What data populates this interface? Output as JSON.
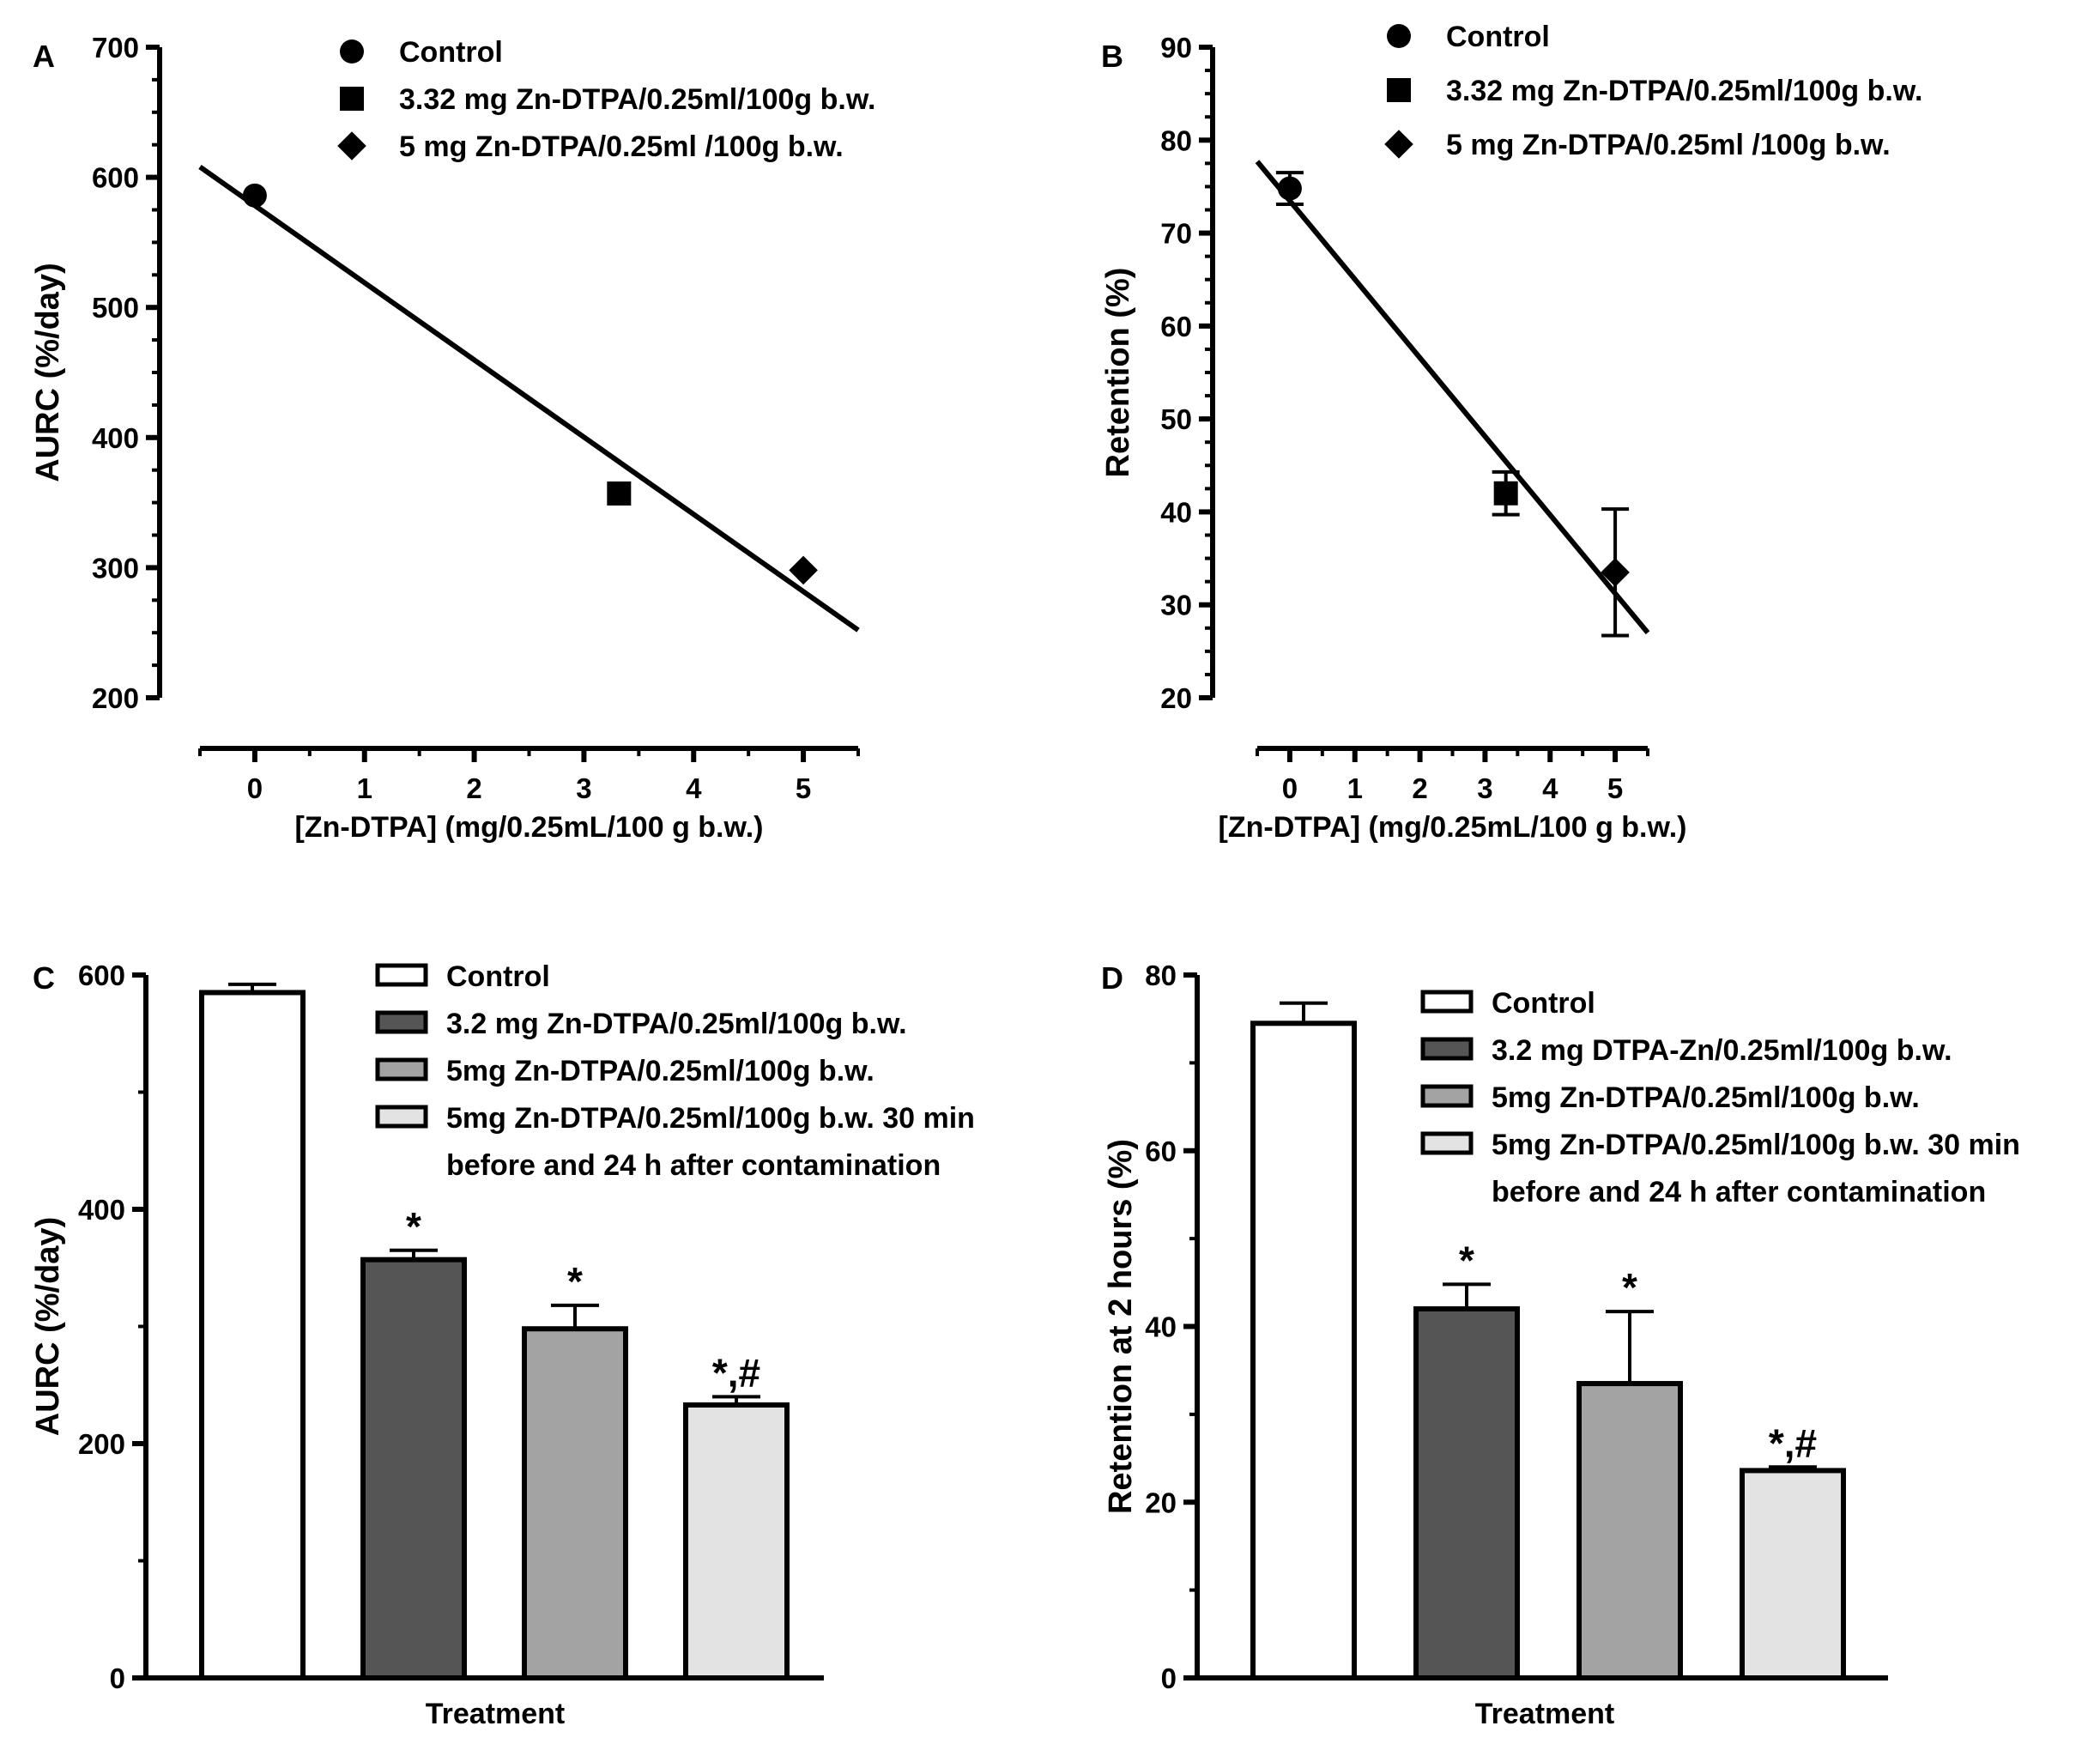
{
  "chart_data": [
    {
      "panel": "A",
      "type": "scatter",
      "xlabel": "[Zn-DTPA] (mg/0.25mL/100 g b.w.)",
      "ylabel": "AURC (%/day)",
      "xlim": [
        -0.5,
        5.5
      ],
      "ylim": [
        200,
        700
      ],
      "x_ticks": [
        "0",
        "1",
        "2",
        "3",
        "4",
        "5"
      ],
      "y_ticks": [
        "200",
        "300",
        "400",
        "500",
        "600",
        "700"
      ],
      "series": [
        {
          "name": "Control",
          "marker": "circle",
          "x": [
            0
          ],
          "y": [
            586
          ]
        },
        {
          "name": "3.32 mg Zn-DTPA/0.25ml/100g b.w.",
          "marker": "square",
          "x": [
            3.32
          ],
          "y": [
            357
          ]
        },
        {
          "name": "5 mg Zn-DTPA/0.25ml /100g b.w.",
          "marker": "diamond",
          "x": [
            5
          ],
          "y": [
            298
          ]
        }
      ],
      "fit_line": {
        "x": [
          -0.5,
          5.5
        ],
        "y": [
          608,
          252
        ]
      }
    },
    {
      "panel": "B",
      "type": "scatter",
      "xlabel": "[Zn-DTPA] (mg/0.25mL/100 g b.w.)",
      "ylabel": "Retention (%)",
      "xlim": [
        -0.5,
        5.5
      ],
      "ylim": [
        20,
        90
      ],
      "x_ticks": [
        "0",
        "1",
        "2",
        "3",
        "4",
        "5"
      ],
      "y_ticks": [
        "20",
        "30",
        "40",
        "50",
        "60",
        "70",
        "80",
        "90"
      ],
      "series": [
        {
          "name": "Control",
          "marker": "circle",
          "x": [
            0
          ],
          "y": [
            74.8
          ],
          "err": [
            1.7
          ]
        },
        {
          "name": "3.32 mg Zn-DTPA/0.25ml/100g b.w.",
          "marker": "square",
          "x": [
            3.32
          ],
          "y": [
            42
          ],
          "err": [
            2.3
          ]
        },
        {
          "name": "5 mg Zn-DTPA/0.25ml /100g b.w.",
          "marker": "diamond",
          "x": [
            5
          ],
          "y": [
            33.5
          ],
          "err": [
            6.8
          ]
        }
      ],
      "fit_line": {
        "x": [
          -0.5,
          5.5
        ],
        "y": [
          77.7,
          27
        ]
      }
    },
    {
      "panel": "C",
      "type": "bar",
      "xlabel": "Treatment",
      "ylabel": "AURC (%/day)",
      "ylim": [
        0,
        600
      ],
      "y_ticks": [
        "0",
        "200",
        "400",
        "600"
      ],
      "categories": [
        "Control",
        "3.2 mg Zn-DTPA/0.25ml/100g b.w.",
        "5mg Zn-DTPA/0.25ml/100g b.w.",
        "5mg Zn-DTPA/0.25ml/100g b.w. 30 min before and 24 h after contamination"
      ],
      "legend_lines": [
        [
          "Control"
        ],
        [
          "3.2 mg Zn-DTPA/0.25ml/100g b.w."
        ],
        [
          "5mg Zn-DTPA/0.25ml/100g b.w."
        ],
        [
          "5mg Zn-DTPA/0.25ml/100g b.w. 30 min",
          "before and 24 h after contamination"
        ]
      ],
      "values": [
        585,
        357,
        298,
        233
      ],
      "errors": [
        7,
        8,
        20,
        7
      ],
      "annotations": [
        "",
        "*",
        "*",
        "*,#"
      ],
      "colors": [
        "#ffffff",
        "#555555",
        "#a3a3a3",
        "#e3e3e3"
      ]
    },
    {
      "panel": "D",
      "type": "bar",
      "xlabel": "Treatment",
      "ylabel": "Retention at 2 hours (%)",
      "ylim": [
        0,
        80
      ],
      "y_ticks": [
        "0",
        "20",
        "40",
        "60",
        "80"
      ],
      "categories": [
        "Control",
        "3.2 mg DTPA-Zn/0.25ml/100g b.w.",
        "5mg Zn-DTPA/0.25ml/100g b.w.",
        "5mg Zn-DTPA/0.25ml/100g b.w. 30 min before and 24 h after contamination"
      ],
      "legend_lines": [
        [
          "Control"
        ],
        [
          "3.2 mg DTPA-Zn/0.25ml/100g b.w."
        ],
        [
          "5mg Zn-DTPA/0.25ml/100g b.w."
        ],
        [
          "5mg Zn-DTPA/0.25ml/100g b.w. 30 min",
          "before and 24 h after contamination"
        ]
      ],
      "values": [
        74.5,
        42,
        33.5,
        23.6
      ],
      "errors": [
        2.3,
        2.8,
        8.2,
        0.4
      ],
      "annotations": [
        "",
        "*",
        "*",
        "*,#"
      ],
      "colors": [
        "#ffffff",
        "#555555",
        "#a3a3a3",
        "#e3e3e3"
      ]
    }
  ]
}
